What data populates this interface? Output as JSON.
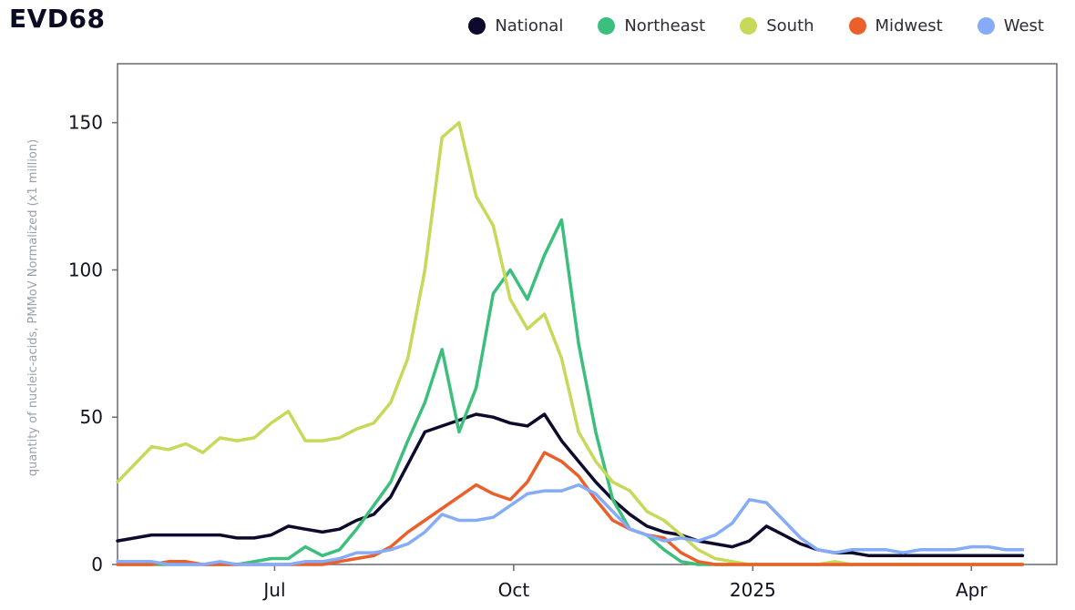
{
  "header": {
    "title": "EVD68"
  },
  "legend": [
    {
      "name": "National",
      "color": "#0d0a2b"
    },
    {
      "name": "Northeast",
      "color": "#3cbf7c"
    },
    {
      "name": "South",
      "color": "#c8d95a"
    },
    {
      "name": "Midwest",
      "color": "#ea5f2a"
    },
    {
      "name": "West",
      "color": "#86acf9"
    }
  ],
  "chart_data": {
    "type": "line",
    "title": "EVD68",
    "xlabel": "",
    "ylabel": "quantity of nucleic-acids, PMMoV Normalized (x1 million)",
    "x_unit": "weeks since 2024-04-15",
    "xlim": [
      0,
      55
    ],
    "ylim": [
      0,
      170
    ],
    "y_ticks": [
      {
        "value": 0,
        "label": "0"
      },
      {
        "value": 50,
        "label": "50"
      },
      {
        "value": 100,
        "label": "100"
      },
      {
        "value": 150,
        "label": "150"
      }
    ],
    "x_ticks": [
      {
        "value": 9.2,
        "label": "Jul"
      },
      {
        "value": 23.2,
        "label": "Oct"
      },
      {
        "value": 37.2,
        "label": "2025"
      },
      {
        "value": 50.0,
        "label": "Apr"
      }
    ],
    "grid": false,
    "legend_position": "top-right",
    "x": [
      0,
      1,
      2,
      3,
      4,
      5,
      6,
      7,
      8,
      9,
      10,
      11,
      12,
      13,
      14,
      15,
      16,
      17,
      18,
      19,
      20,
      21,
      22,
      23,
      24,
      25,
      26,
      27,
      28,
      29,
      30,
      31,
      32,
      33,
      34,
      35,
      36,
      37,
      38,
      39,
      40,
      41,
      42,
      43,
      44,
      45,
      46,
      47,
      48,
      49,
      50,
      51,
      52,
      53
    ],
    "series": [
      {
        "name": "National",
        "color": "#0d0a2b",
        "values": [
          8,
          9,
          10,
          10,
          10,
          10,
          10,
          9,
          9,
          10,
          13,
          12,
          11,
          12,
          15,
          17,
          23,
          34,
          45,
          47,
          49,
          51,
          50,
          48,
          47,
          51,
          42,
          35,
          28,
          22,
          17,
          13,
          11,
          10,
          8,
          7,
          6,
          8,
          13,
          10,
          7,
          5,
          4,
          4,
          3,
          3,
          3,
          3,
          3,
          3,
          3,
          3,
          3,
          3
        ]
      },
      {
        "name": "Northeast",
        "color": "#3cbf7c",
        "values": [
          0,
          0,
          0,
          0,
          0,
          0,
          0,
          0,
          1,
          2,
          2,
          6,
          3,
          5,
          12,
          20,
          28,
          42,
          55,
          73,
          45,
          60,
          92,
          100,
          90,
          105,
          117,
          75,
          45,
          22,
          12,
          10,
          5,
          1,
          0,
          0,
          0,
          0,
          0,
          0,
          0,
          0,
          0,
          0,
          0,
          0,
          0,
          0,
          0,
          0,
          0,
          0,
          0,
          0
        ]
      },
      {
        "name": "South",
        "color": "#c8d95a",
        "values": [
          28,
          34,
          40,
          39,
          41,
          38,
          43,
          42,
          43,
          48,
          52,
          42,
          42,
          43,
          46,
          48,
          55,
          70,
          100,
          145,
          150,
          125,
          115,
          90,
          80,
          85,
          70,
          45,
          35,
          28,
          25,
          18,
          15,
          10,
          5,
          2,
          1,
          0,
          0,
          0,
          0,
          0,
          1,
          0,
          0,
          0,
          0,
          0,
          0,
          0,
          0,
          0,
          0,
          0
        ]
      },
      {
        "name": "Midwest",
        "color": "#ea5f2a",
        "values": [
          0,
          0,
          0,
          1,
          1,
          0,
          0,
          0,
          0,
          0,
          0,
          0,
          0,
          1,
          2,
          3,
          6,
          11,
          15,
          19,
          23,
          27,
          24,
          22,
          28,
          38,
          35,
          30,
          22,
          15,
          12,
          10,
          9,
          4,
          1,
          0,
          0,
          0,
          0,
          0,
          0,
          0,
          0,
          0,
          0,
          0,
          0,
          0,
          0,
          0,
          0,
          0,
          0,
          0
        ]
      },
      {
        "name": "West",
        "color": "#86acf9",
        "values": [
          1,
          1,
          1,
          0,
          0,
          0,
          1,
          0,
          0,
          0,
          0,
          1,
          1,
          2,
          4,
          4,
          5,
          7,
          11,
          17,
          15,
          15,
          16,
          20,
          24,
          25,
          25,
          27,
          24,
          18,
          12,
          10,
          8,
          9,
          8,
          10,
          14,
          22,
          21,
          15,
          9,
          5,
          4,
          5,
          5,
          5,
          4,
          5,
          5,
          5,
          6,
          6,
          5,
          5
        ]
      }
    ]
  }
}
